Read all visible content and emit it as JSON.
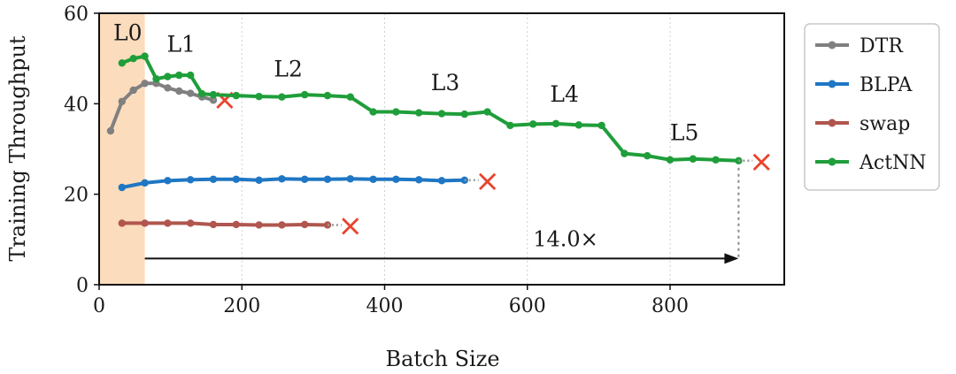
{
  "chart_data": {
    "type": "line",
    "xlabel": "Batch Size",
    "ylabel": "Training Throughput",
    "xlim": [
      0,
      960
    ],
    "ylim": [
      0,
      60
    ],
    "xticks": [
      "0",
      "200",
      "400",
      "600",
      "800"
    ],
    "yticks": [
      "0",
      "20",
      "40",
      "60"
    ],
    "grid": "vertical dotted",
    "legend_placement": "right",
    "highlight_region": [
      0,
      64
    ],
    "series": [
      {
        "name": "DTR",
        "color": "#808080",
        "x": [
          16,
          32,
          48,
          64,
          80,
          96,
          112,
          128,
          144,
          160
        ],
        "y": [
          34,
          40.5,
          43,
          44.5,
          44.5,
          43.5,
          42.8,
          42.3,
          41.5,
          40.8
        ],
        "oom_x": 176,
        "oom_y": 41
      },
      {
        "name": "BLPA",
        "color": "#1f77c4",
        "x": [
          32,
          64,
          96,
          128,
          160,
          192,
          224,
          256,
          288,
          320,
          352,
          384,
          416,
          448,
          480,
          512
        ],
        "y": [
          21.5,
          22.5,
          23,
          23.2,
          23.3,
          23.3,
          23.1,
          23.4,
          23.3,
          23.3,
          23.4,
          23.3,
          23.3,
          23.2,
          23,
          23.1
        ],
        "oom_x": 544,
        "oom_y": 23.1
      },
      {
        "name": "swap",
        "color": "#b0564e",
        "x": [
          32,
          64,
          96,
          128,
          160,
          192,
          224,
          256,
          288,
          320
        ],
        "y": [
          13.6,
          13.6,
          13.6,
          13.6,
          13.3,
          13.3,
          13.2,
          13.2,
          13.3,
          13.2
        ],
        "oom_x": 352,
        "oom_y": 13.2
      },
      {
        "name": "ActNN",
        "color": "#1f9e3a",
        "x": [
          32,
          48,
          64,
          80,
          96,
          112,
          128,
          144,
          160,
          192,
          224,
          256,
          288,
          320,
          352,
          384,
          416,
          448,
          480,
          512,
          544,
          576,
          608,
          640,
          672,
          704,
          736,
          768,
          800,
          832,
          864,
          896
        ],
        "y": [
          49,
          50,
          50.5,
          45.5,
          46,
          46.3,
          46.3,
          42.2,
          42,
          41.8,
          41.6,
          41.5,
          42,
          41.8,
          41.5,
          38.2,
          38.2,
          38,
          37.8,
          37.7,
          38.2,
          35.2,
          35.5,
          35.6,
          35.3,
          35.2,
          29,
          28.5,
          27.6,
          27.8,
          27.6,
          27.4
        ],
        "oom_x": 928,
        "oom_y": 27.4
      }
    ],
    "region_labels": [
      {
        "text": "L0",
        "x": 40,
        "y": 54
      },
      {
        "text": "L1",
        "x": 115,
        "y": 51.5
      },
      {
        "text": "L2",
        "x": 265,
        "y": 46
      },
      {
        "text": "L3",
        "x": 485,
        "y": 43
      },
      {
        "text": "L4",
        "x": 652,
        "y": 40.5
      },
      {
        "text": "L5",
        "x": 820,
        "y": 32
      }
    ],
    "speedup": {
      "text": "14.0×",
      "from_x": 64,
      "to_x": 896,
      "y": 5.8,
      "drop_from_y": 27.4
    }
  },
  "oom_marker": "×"
}
